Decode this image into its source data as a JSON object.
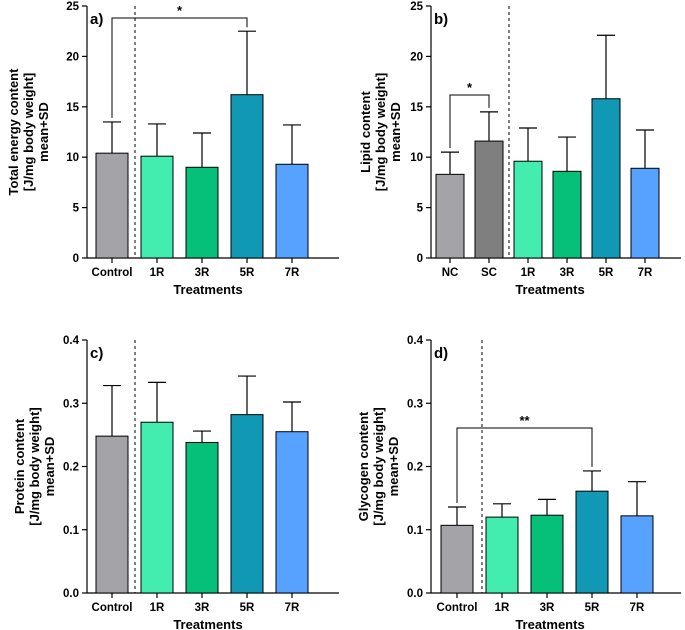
{
  "chart_data": [
    {
      "type": "bar",
      "panel": "a)",
      "title": "",
      "ylabel_lines": [
        "Total energy content",
        "[J/mg body weight]",
        "mean+SD"
      ],
      "xlabel": "Treatments",
      "ylim": [
        0,
        25
      ],
      "yticks": [
        0,
        5,
        10,
        15,
        20,
        25
      ],
      "categories": [
        "Control",
        "1R",
        "3R",
        "5R",
        "7R"
      ],
      "values": [
        10.4,
        10.1,
        9.0,
        16.2,
        9.3
      ],
      "sd": [
        3.1,
        3.2,
        3.4,
        6.3,
        3.9
      ],
      "colors": [
        "#a3a3a8",
        "#43edb0",
        "#06c07a",
        "#1198b4",
        "#57a2ff"
      ],
      "separator_after": 0,
      "significance": [
        {
          "from": 0,
          "to": 3,
          "label": "*"
        }
      ]
    },
    {
      "type": "bar",
      "panel": "b)",
      "title": "",
      "ylabel_lines": [
        "Lipid content",
        "[J/mg body weight]",
        "mean+SD"
      ],
      "xlabel": "Treatments",
      "ylim": [
        0,
        25
      ],
      "yticks": [
        0,
        5,
        10,
        15,
        20,
        25
      ],
      "categories": [
        "NC",
        "SC",
        "1R",
        "3R",
        "5R",
        "7R"
      ],
      "values": [
        8.3,
        11.6,
        9.6,
        8.6,
        15.8,
        8.9
      ],
      "sd": [
        2.2,
        2.9,
        3.3,
        3.4,
        6.3,
        3.8
      ],
      "colors": [
        "#a3a3a8",
        "#7f7f80",
        "#43edb0",
        "#06c07a",
        "#1198b4",
        "#57a2ff"
      ],
      "separator_after": 1,
      "significance": [
        {
          "from": 0,
          "to": 1,
          "label": "*"
        }
      ]
    },
    {
      "type": "bar",
      "panel": "c)",
      "title": "",
      "ylabel_lines": [
        "Protein content",
        "[J/mg body weight]",
        "mean+SD"
      ],
      "xlabel": "Treatments",
      "ylim": [
        0,
        0.4
      ],
      "yticks": [
        "0.0",
        "0.1",
        "0.2",
        "0.3",
        "0.4"
      ],
      "categories": [
        "Control",
        "1R",
        "3R",
        "5R",
        "7R"
      ],
      "values": [
        0.248,
        0.27,
        0.238,
        0.282,
        0.255
      ],
      "sd": [
        0.08,
        0.063,
        0.018,
        0.061,
        0.047
      ],
      "colors": [
        "#a3a3a8",
        "#43edb0",
        "#06c07a",
        "#1198b4",
        "#57a2ff"
      ],
      "separator_after": 0,
      "significance": []
    },
    {
      "type": "bar",
      "panel": "d)",
      "title": "",
      "ylabel_lines": [
        "Glycogen content",
        "[J/mg body weight]",
        "mean+SD"
      ],
      "xlabel": "Treatments",
      "ylim": [
        0,
        0.4
      ],
      "yticks": [
        "0.0",
        "0.1",
        "0.2",
        "0.3",
        "0.4"
      ],
      "categories": [
        "Control",
        "1R",
        "3R",
        "5R",
        "7R"
      ],
      "values": [
        0.107,
        0.12,
        0.123,
        0.161,
        0.122
      ],
      "sd": [
        0.029,
        0.021,
        0.025,
        0.032,
        0.054
      ],
      "colors": [
        "#a3a3a8",
        "#43edb0",
        "#06c07a",
        "#1198b4",
        "#57a2ff"
      ],
      "separator_after": 0,
      "significance": [
        {
          "from": 0,
          "to": 3,
          "label": "**"
        }
      ]
    }
  ]
}
